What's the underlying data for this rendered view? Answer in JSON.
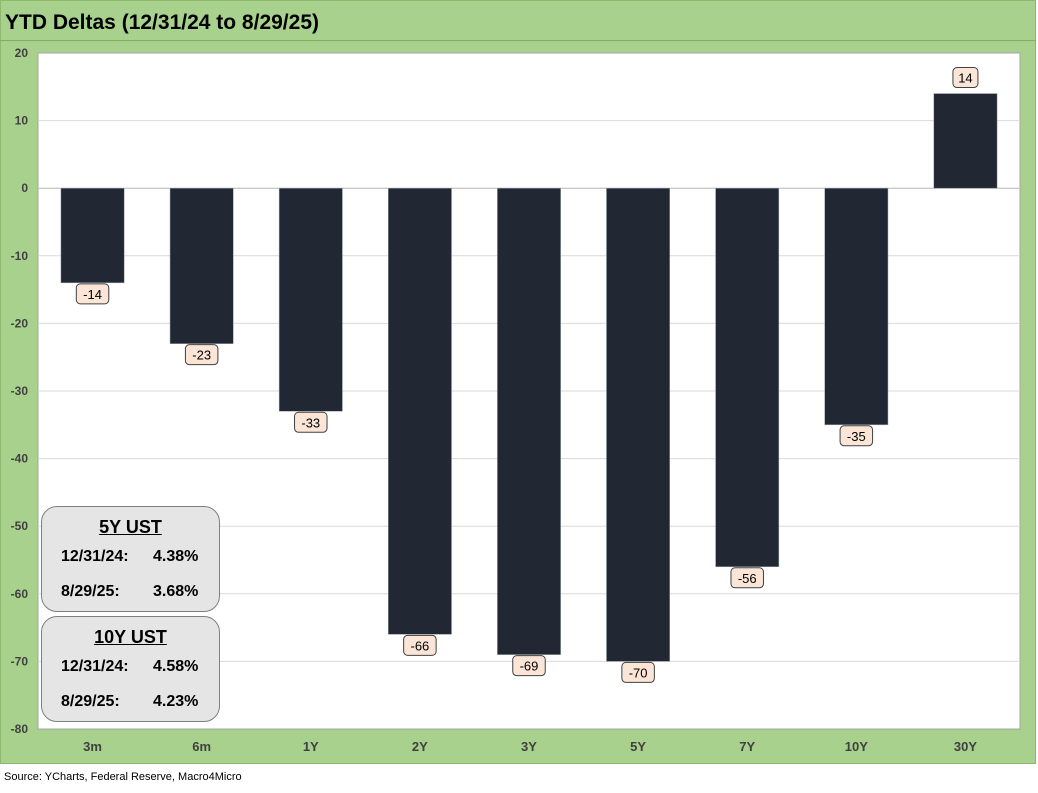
{
  "title": "YTD Deltas (12/31/24 to 8/29/25)",
  "source": "Source: YCharts, Federal Reserve, Macro4Micro",
  "colors": {
    "frame": "#a9d18e",
    "plot_background": "#ffffff",
    "bar": "#222833",
    "data_label_fill": "#fbe5d6",
    "gridline": "#d9d9d9",
    "info_box_fill": "#e5e5e5"
  },
  "chart_data": {
    "type": "bar",
    "title": "YTD Deltas (12/31/24 to 8/29/25)",
    "categories": [
      "3m",
      "6m",
      "1Y",
      "2Y",
      "3Y",
      "5Y",
      "7Y",
      "10Y",
      "30Y"
    ],
    "values": [
      -14,
      -23,
      -33,
      -66,
      -69,
      -70,
      -56,
      -35,
      14
    ],
    "xlabel": "",
    "ylabel": "",
    "ylim": [
      -80,
      20
    ],
    "yticks": [
      20,
      10,
      0,
      -10,
      -20,
      -30,
      -40,
      -50,
      -60,
      -70,
      -80
    ],
    "grid": true,
    "legend": "none",
    "data_labels": true
  },
  "info_boxes": [
    {
      "title": "5Y UST",
      "rows": [
        {
          "label": "12/31/24:",
          "value": "4.38%"
        },
        {
          "label": "8/29/25:",
          "value": "3.68%"
        }
      ]
    },
    {
      "title": "10Y UST",
      "rows": [
        {
          "label": "12/31/24:",
          "value": "4.58%"
        },
        {
          "label": "8/29/25:",
          "value": "4.23%"
        }
      ]
    }
  ]
}
